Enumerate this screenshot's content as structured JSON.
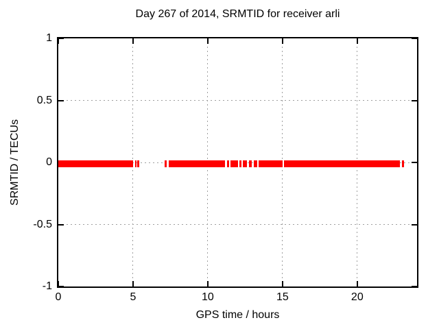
{
  "title": "Day 267 of 2014, SRMTID for receiver arli",
  "chart_data": {
    "type": "scatter",
    "title": "Day 267 of 2014, SRMTID for receiver arli",
    "xlabel": "GPS time / hours",
    "ylabel": "SRMTID / TECUs",
    "xlim": [
      0,
      24
    ],
    "ylim": [
      -1,
      1
    ],
    "grid": true,
    "legend": "none",
    "grid_color": "#9e9e9e",
    "border_color": "#000000",
    "xticks": [
      {
        "value": 0,
        "label": "0"
      },
      {
        "value": 5,
        "label": "5"
      },
      {
        "value": 10,
        "label": "10"
      },
      {
        "value": 15,
        "label": "15"
      },
      {
        "value": 20,
        "label": "20"
      }
    ],
    "yticks": [
      {
        "value": 1,
        "label": "1"
      },
      {
        "value": 0.5,
        "label": "0.5"
      },
      {
        "value": 0,
        "label": "0"
      },
      {
        "value": -0.5,
        "label": "-0.5"
      },
      {
        "value": -1,
        "label": "-1"
      }
    ],
    "series": [
      {
        "name": "SRMTID",
        "color": "#ff0000",
        "marker": "point",
        "y_value": 0,
        "x_segments_hours": [
          [
            0.0,
            5.0
          ],
          [
            5.12,
            5.22
          ],
          [
            5.3,
            5.4
          ],
          [
            7.1,
            7.27
          ],
          [
            7.38,
            11.15
          ],
          [
            11.3,
            11.42
          ],
          [
            11.5,
            12.02
          ],
          [
            12.11,
            12.25
          ],
          [
            12.34,
            12.62
          ],
          [
            12.76,
            12.94
          ],
          [
            13.08,
            13.3
          ],
          [
            13.4,
            15.0
          ],
          [
            15.1,
            22.85
          ],
          [
            23.0,
            23.13
          ]
        ]
      }
    ]
  }
}
